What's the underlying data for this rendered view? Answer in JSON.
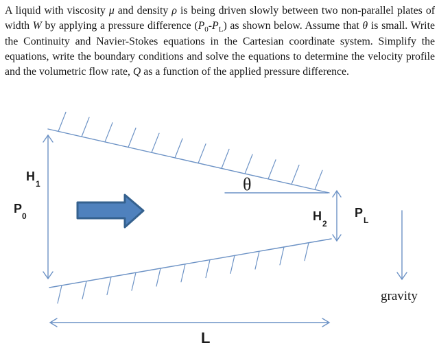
{
  "problem": {
    "segments": [
      {
        "t": "A liquid with viscosity "
      },
      {
        "t": "μ",
        "i": true
      },
      {
        "t": " and density "
      },
      {
        "t": "ρ",
        "i": true
      },
      {
        "t": " is being driven slowly between two non-parallel plates of width "
      },
      {
        "t": "W",
        "i": true
      },
      {
        "t": " by applying a pressure difference ("
      },
      {
        "t": "P",
        "i": true
      },
      {
        "t": "0",
        "sub": true
      },
      {
        "t": "-"
      },
      {
        "t": "P",
        "i": true
      },
      {
        "t": "L",
        "sub": true
      },
      {
        "t": ") as shown below. Assume that "
      },
      {
        "t": "θ",
        "i": true
      },
      {
        "t": " is small. Write the Continuity and Navier-Stokes equations in the Cartesian coordinate system. Simplify the equations, write the boundary conditions and solve the equations to determine the velocity profile and the volumetric flow rate, "
      },
      {
        "t": "Q",
        "i": true
      },
      {
        "t": " as a function of the applied pressure difference."
      }
    ]
  },
  "diagram": {
    "labels": {
      "h1_main": "H",
      "h1_sub": "1",
      "p0_main": "P",
      "p0_sub": "0",
      "h2_main": "H",
      "h2_sub": "2",
      "pl_main": "P",
      "pl_sub": "L",
      "theta": "θ",
      "length": "L",
      "gravity": "gravity"
    },
    "colors": {
      "line": "#6c92c5",
      "block_arrow_fill": "#4f81bd",
      "block_arrow_stroke": "#35618e",
      "label_text": "#1a1a1a"
    }
  }
}
